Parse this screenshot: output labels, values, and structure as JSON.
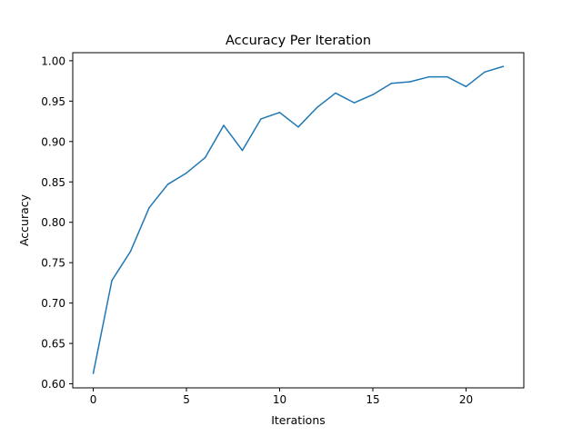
{
  "chart_data": {
    "type": "line",
    "title": "Accuracy Per Iteration",
    "xlabel": "Iterations",
    "ylabel": "Accuracy",
    "xlim": [
      -1.1,
      23.1
    ],
    "ylim": [
      0.595,
      1.01
    ],
    "x_ticks": [
      0,
      5,
      10,
      15,
      20
    ],
    "x_tick_labels": [
      "0",
      "5",
      "10",
      "15",
      "20"
    ],
    "y_ticks": [
      0.6,
      0.65,
      0.7,
      0.75,
      0.8,
      0.85,
      0.9,
      0.95,
      1.0
    ],
    "y_tick_labels": [
      "0.60",
      "0.65",
      "0.70",
      "0.75",
      "0.80",
      "0.85",
      "0.90",
      "0.95",
      "1.00"
    ],
    "grid": false,
    "legend": "none",
    "series": [
      {
        "color": "#1f77b4",
        "x": [
          0,
          1,
          2,
          3,
          4,
          5,
          6,
          7,
          8,
          9,
          10,
          11,
          12,
          13,
          14,
          15,
          16,
          17,
          18,
          19,
          20,
          21,
          22
        ],
        "values": [
          0.613,
          0.728,
          0.764,
          0.818,
          0.847,
          0.861,
          0.88,
          0.92,
          0.889,
          0.928,
          0.936,
          0.918,
          0.942,
          0.96,
          0.948,
          0.958,
          0.972,
          0.974,
          0.98,
          0.98,
          0.968,
          0.986,
          0.993
        ]
      }
    ]
  }
}
